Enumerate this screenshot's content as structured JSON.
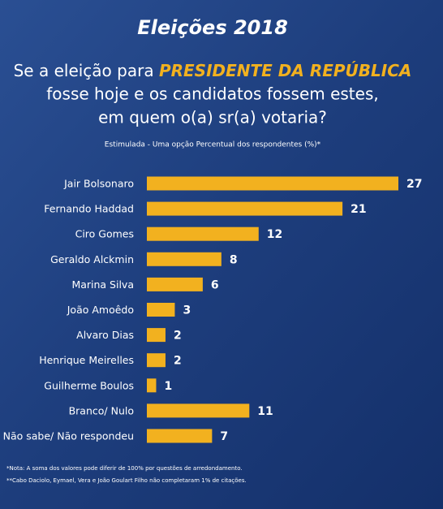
{
  "chart_data": {
    "type": "bar",
    "orientation": "horizontal",
    "title": "Eleições 2018",
    "subtitle": [
      "Se a eleição para",
      "PRESIDENTE DA REPÚBLICA",
      "fosse hoje e os candidatos fossem estes,",
      "em quem o(a) sr(a) votaria?"
    ],
    "caption": "Estimulada - Uma opção Percentual dos respondentes (%)*",
    "categories": [
      "Jair Bolsonaro",
      "Fernando Haddad",
      "Ciro Gomes",
      "Geraldo Alckmin",
      "Marina Silva",
      "João Amoêdo",
      "Alvaro Dias",
      "Henrique Meirelles",
      "Guilherme Boulos",
      "Branco/ Nulo",
      "Não sabe/ Não respondeu"
    ],
    "values": [
      27,
      21,
      12,
      8,
      6,
      3,
      2,
      2,
      1,
      11,
      7
    ],
    "color": "#f2b11f",
    "notes": [
      "*Nota: A soma dos valores pode diferir de 100% por questões de arredondamento.",
      "**Cabo Daciolo, Eymael, Vera e João Goulart Filho não completaram 1% de citações."
    ]
  }
}
